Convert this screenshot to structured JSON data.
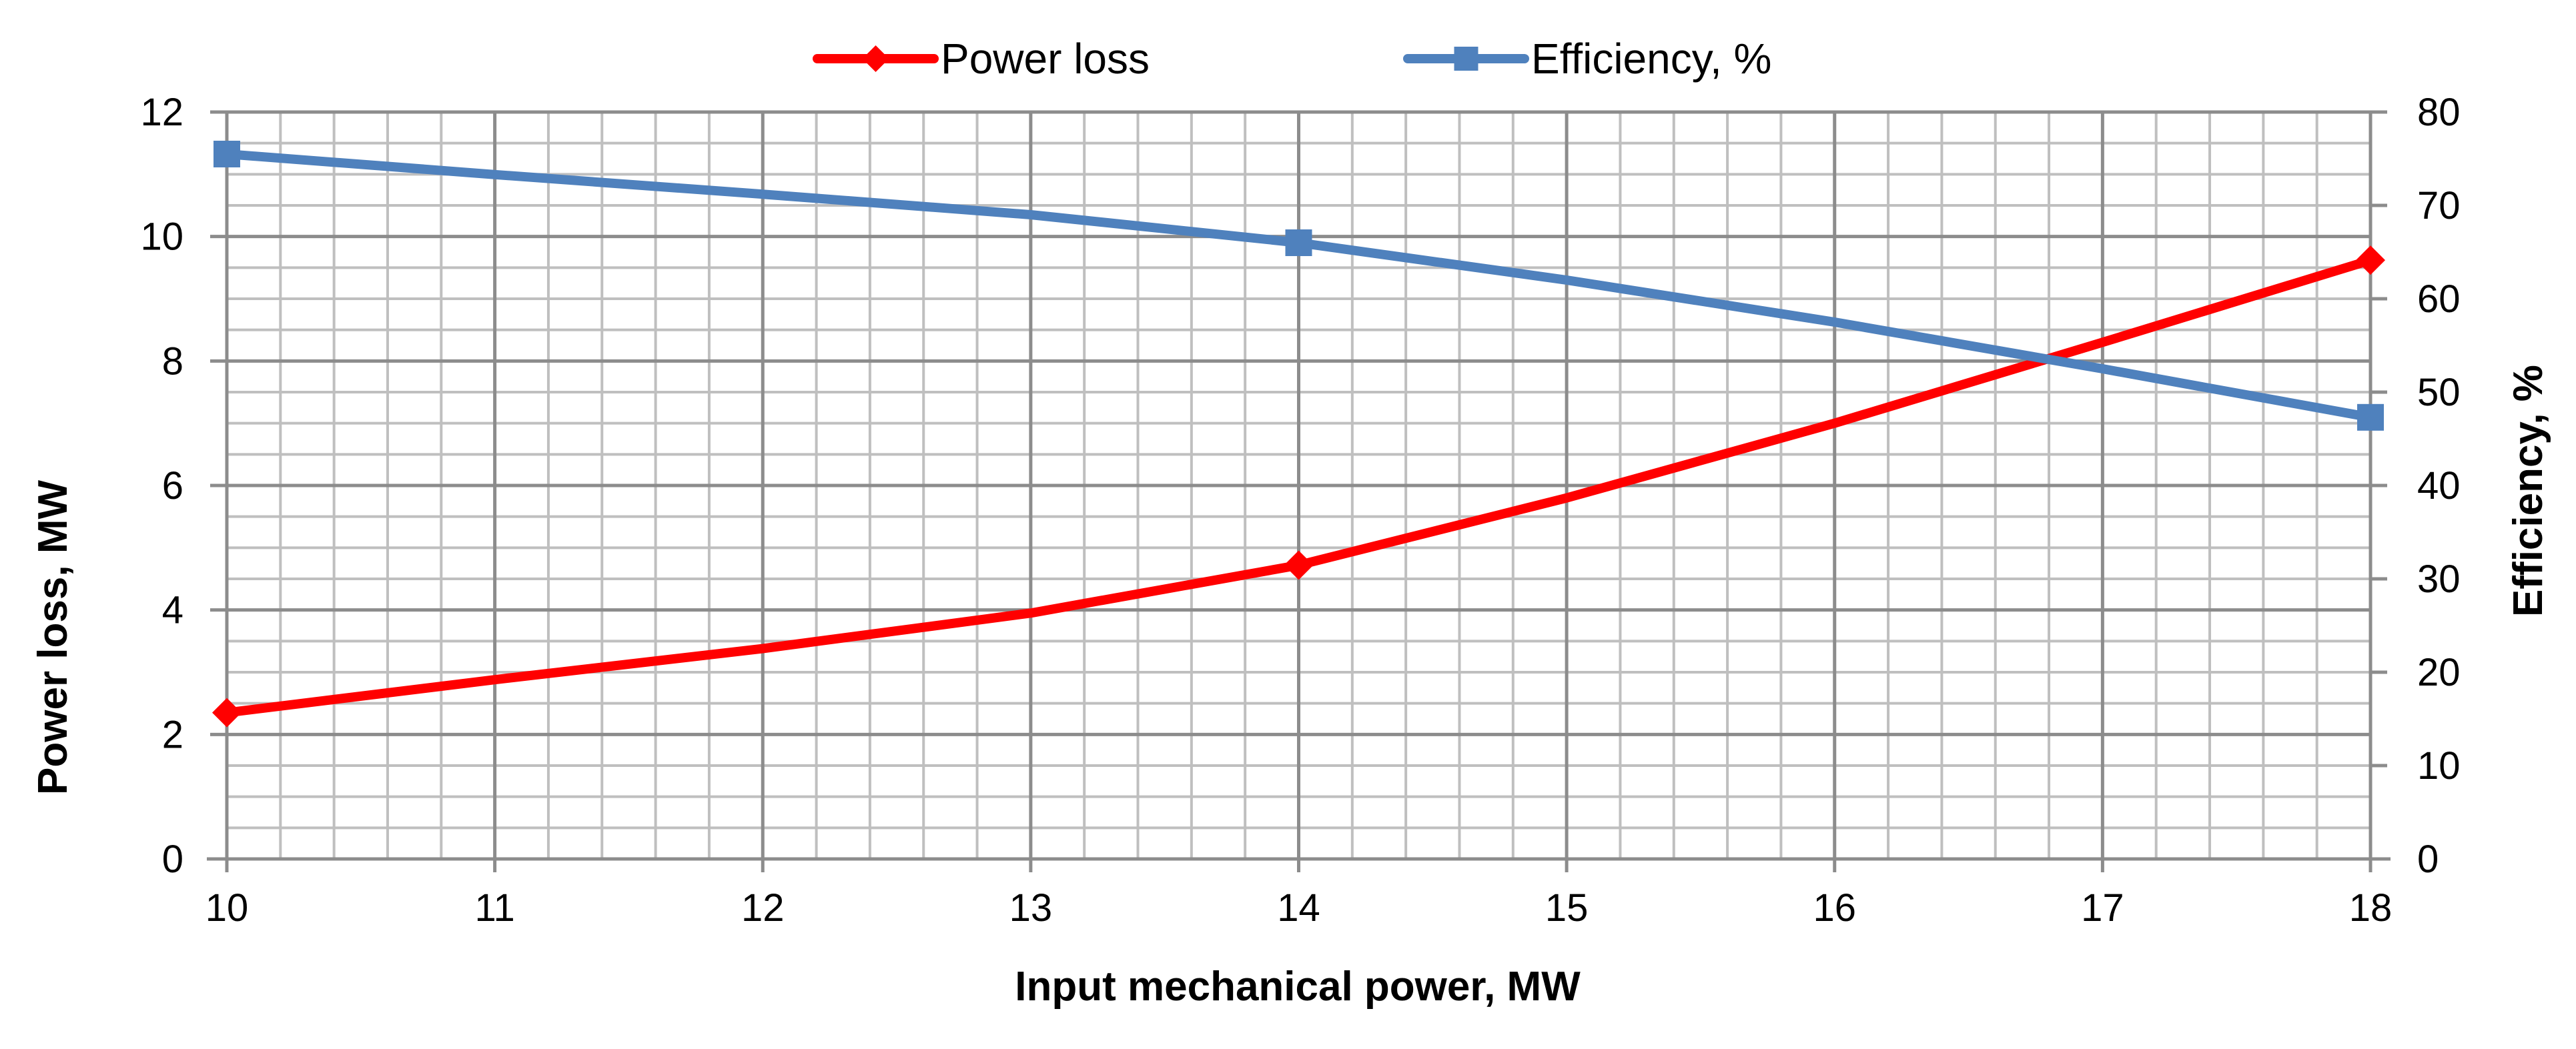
{
  "chart_data": {
    "type": "line",
    "x": [
      10,
      14,
      18
    ],
    "series": [
      {
        "name": "Power loss",
        "axis": "left",
        "color": "#FF0000",
        "marker": "diamond",
        "x": [
          10,
          11,
          12,
          13,
          14,
          15,
          16,
          17,
          18
        ],
        "values": [
          2.35,
          2.88,
          3.38,
          3.95,
          4.72,
          5.8,
          7.0,
          8.3,
          9.62
        ],
        "marked_x": [
          10,
          14,
          18
        ]
      },
      {
        "name": "Efficiency, %",
        "axis": "right",
        "color": "#4F81BD",
        "marker": "square",
        "x": [
          10,
          11,
          12,
          13,
          14,
          15,
          16,
          17,
          18
        ],
        "values": [
          75.5,
          73.3,
          71.2,
          69.0,
          66.0,
          62.0,
          57.5,
          52.5,
          47.3
        ],
        "marked_x": [
          10,
          14,
          18
        ]
      }
    ],
    "title": "",
    "xlabel": "Input mechanical power, MW",
    "ylabel": "Power loss, MW",
    "y2label": "Efficiency, %",
    "xlim": [
      10,
      18
    ],
    "ylim": [
      0,
      12
    ],
    "y2lim": [
      0,
      80
    ],
    "xticks": [
      "10",
      "11",
      "12",
      "13",
      "14",
      "15",
      "16",
      "17",
      "18"
    ],
    "yticks": [
      "0",
      "2",
      "4",
      "6",
      "8",
      "10",
      "12"
    ],
    "y2ticks": [
      "0",
      "10",
      "20",
      "30",
      "40",
      "50",
      "60",
      "70",
      "80"
    ],
    "grid": true,
    "legend": {
      "placement": "top-center",
      "entries": [
        "Power loss",
        "Efficiency, %"
      ]
    }
  }
}
